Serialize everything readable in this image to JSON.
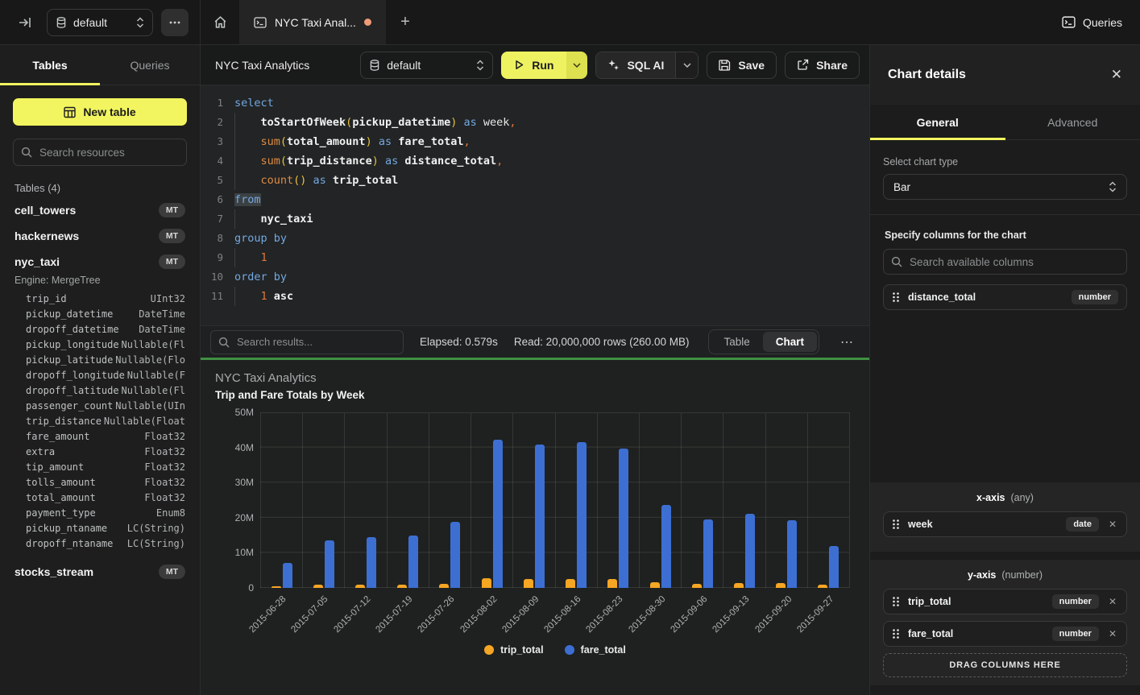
{
  "topbar": {
    "db_select": "default",
    "tab_label": "NYC Taxi Anal...",
    "queries_label": "Queries"
  },
  "sidebar": {
    "tab_tables": "Tables",
    "tab_queries": "Queries",
    "new_table_label": "New table",
    "search_placeholder": "Search resources",
    "tables_label": "Tables (4)",
    "tables": [
      {
        "name": "cell_towers",
        "badge": "MT"
      },
      {
        "name": "hackernews",
        "badge": "MT"
      },
      {
        "name": "nyc_taxi",
        "badge": "MT",
        "engine": "Engine: MergeTree",
        "columns": [
          {
            "name": "trip_id",
            "type": "UInt32"
          },
          {
            "name": "pickup_datetime",
            "type": "DateTime"
          },
          {
            "name": "dropoff_datetime",
            "type": "DateTime"
          },
          {
            "name": "pickup_longitude",
            "type": "Nullable(Fl"
          },
          {
            "name": "pickup_latitude",
            "type": "Nullable(Flo"
          },
          {
            "name": "dropoff_longitude",
            "type": "Nullable(F"
          },
          {
            "name": "dropoff_latitude",
            "type": "Nullable(Fl"
          },
          {
            "name": "passenger_count",
            "type": "Nullable(UIn"
          },
          {
            "name": "trip_distance",
            "type": "Nullable(Float"
          },
          {
            "name": "fare_amount",
            "type": "Float32"
          },
          {
            "name": "extra",
            "type": "Float32"
          },
          {
            "name": "tip_amount",
            "type": "Float32"
          },
          {
            "name": "tolls_amount",
            "type": "Float32"
          },
          {
            "name": "total_amount",
            "type": "Float32"
          },
          {
            "name": "payment_type",
            "type": "Enum8"
          },
          {
            "name": "pickup_ntaname",
            "type": "LC(String)"
          },
          {
            "name": "dropoff_ntaname",
            "type": "LC(String)"
          }
        ]
      },
      {
        "name": "stocks_stream",
        "badge": "MT"
      }
    ]
  },
  "header": {
    "title": "NYC Taxi Analytics",
    "db_select": "default",
    "run_label": "Run",
    "sqlai_label": "SQL AI",
    "save_label": "Save",
    "share_label": "Share"
  },
  "editor": {
    "lines": [
      {
        "n": "1",
        "tokens": [
          [
            "kw",
            "select"
          ]
        ]
      },
      {
        "n": "2",
        "tokens": [
          [
            "guide",
            "    "
          ],
          [
            "id",
            "toStartOfWeek"
          ],
          [
            "br",
            "("
          ],
          [
            "id",
            "pickup_datetime"
          ],
          [
            "br",
            ")"
          ],
          [
            "kw",
            " as "
          ],
          [
            "pl",
            "week"
          ],
          [
            "cm",
            ","
          ]
        ]
      },
      {
        "n": "3",
        "tokens": [
          [
            "guide",
            "    "
          ],
          [
            "fn",
            "sum"
          ],
          [
            "br",
            "("
          ],
          [
            "id",
            "total_amount"
          ],
          [
            "br",
            ")"
          ],
          [
            "kw",
            " as "
          ],
          [
            "id",
            "fare_total"
          ],
          [
            "cm",
            ","
          ]
        ]
      },
      {
        "n": "4",
        "tokens": [
          [
            "guide",
            "    "
          ],
          [
            "fn",
            "sum"
          ],
          [
            "br",
            "("
          ],
          [
            "id",
            "trip_distance"
          ],
          [
            "br",
            ")"
          ],
          [
            "kw",
            " as "
          ],
          [
            "id",
            "distance_total"
          ],
          [
            "cm",
            ","
          ]
        ]
      },
      {
        "n": "5",
        "tokens": [
          [
            "guide",
            "    "
          ],
          [
            "fn",
            "count"
          ],
          [
            "br",
            "()"
          ],
          [
            "kw",
            " as "
          ],
          [
            "id",
            "trip_total"
          ]
        ]
      },
      {
        "n": "6",
        "tokens": [
          [
            "hl",
            "from"
          ]
        ]
      },
      {
        "n": "7",
        "tokens": [
          [
            "guide",
            "    "
          ],
          [
            "id",
            "nyc_taxi"
          ]
        ]
      },
      {
        "n": "8",
        "tokens": [
          [
            "kw",
            "group by"
          ]
        ]
      },
      {
        "n": "9",
        "tokens": [
          [
            "guide",
            "    "
          ],
          [
            "cm",
            "1"
          ]
        ]
      },
      {
        "n": "10",
        "tokens": [
          [
            "kw",
            "order by"
          ]
        ]
      },
      {
        "n": "11",
        "tokens": [
          [
            "guide",
            "    "
          ],
          [
            "cm",
            "1"
          ],
          [
            "id",
            " asc"
          ]
        ]
      }
    ]
  },
  "results_bar": {
    "search_placeholder": "Search results...",
    "elapsed": "Elapsed: 0.579s",
    "read": "Read: 20,000,000 rows (260.00 MB)",
    "toggle_table": "Table",
    "toggle_chart": "Chart",
    "more": "⋯"
  },
  "chart_data": {
    "type": "bar",
    "title": "NYC Taxi Analytics",
    "subtitle": "Trip and Fare Totals by Week",
    "categories": [
      "2015-06-28",
      "2015-07-05",
      "2015-07-12",
      "2015-07-19",
      "2015-07-26",
      "2015-08-02",
      "2015-08-09",
      "2015-08-16",
      "2015-08-23",
      "2015-08-30",
      "2015-09-06",
      "2015-09-13",
      "2015-09-20",
      "2015-09-27"
    ],
    "series": [
      {
        "name": "trip_total",
        "color": "#f5a623",
        "values": [
          500000,
          900000,
          900000,
          900000,
          1100000,
          2700000,
          2600000,
          2600000,
          2500000,
          1500000,
          1200000,
          1300000,
          1300000,
          900000
        ]
      },
      {
        "name": "fare_total",
        "color": "#3d6fd3",
        "values": [
          7000000,
          13500000,
          14500000,
          15000000,
          18700000,
          42300000,
          40900000,
          41500000,
          39600000,
          23700000,
          19500000,
          21200000,
          19200000,
          11900000
        ]
      }
    ],
    "ylim": [
      0,
      50000000
    ],
    "yticks": [
      "0",
      "10M",
      "20M",
      "30M",
      "40M",
      "50M"
    ],
    "grid": true,
    "legend_position": "bottom"
  },
  "chart_panel": {
    "title": "Chart details",
    "tab_general": "General",
    "tab_advanced": "Advanced",
    "select_type_label": "Select chart type",
    "chart_type": "Bar",
    "columns_label": "Specify columns for the chart",
    "search_placeholder": "Search available columns",
    "available_columns": [
      {
        "name": "distance_total",
        "type": "number"
      }
    ],
    "xaxis_title": "x-axis",
    "xaxis_hint": "(any)",
    "xaxis_columns": [
      {
        "name": "week",
        "type": "date"
      }
    ],
    "yaxis_title": "y-axis",
    "yaxis_hint": "(number)",
    "yaxis_columns": [
      {
        "name": "trip_total",
        "type": "number"
      },
      {
        "name": "fare_total",
        "type": "number"
      }
    ],
    "dropzone_label": "DRAG COLUMNS HERE"
  }
}
